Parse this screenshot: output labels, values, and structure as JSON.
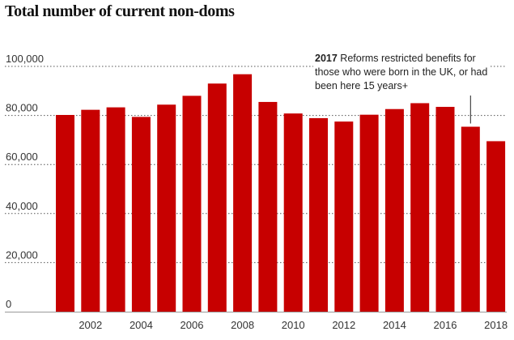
{
  "chart_data": {
    "type": "bar",
    "title": "Total number of current non-doms",
    "xlabel": "",
    "ylabel": "",
    "categories": [
      "2001",
      "2002",
      "2003",
      "2004",
      "2005",
      "2006",
      "2007",
      "2008",
      "2009",
      "2010",
      "2011",
      "2012",
      "2013",
      "2014",
      "2015",
      "2016",
      "2017",
      "2018"
    ],
    "values": [
      80200,
      82300,
      83300,
      79400,
      84400,
      88000,
      93000,
      96800,
      85500,
      80800,
      78900,
      77500,
      80300,
      82600,
      85000,
      83500,
      75400,
      69500
    ],
    "ylim": [
      0,
      100000
    ],
    "yticks": [
      0,
      20000,
      40000,
      60000,
      80000,
      100000
    ],
    "ytick_labels": [
      "0",
      "20,000",
      "40,000",
      "60,000",
      "80,000",
      "100,000"
    ],
    "xtick_labels": [
      "2002",
      "2004",
      "2006",
      "2008",
      "2010",
      "2012",
      "2014",
      "2016",
      "2018"
    ],
    "grid": "horizontal dotted",
    "bar_color": "#c70000",
    "annotation": {
      "year": "2017",
      "text": "Reforms restricted benefits for those who were born in the UK, or had been here 15 years+",
      "target": "2017"
    }
  }
}
